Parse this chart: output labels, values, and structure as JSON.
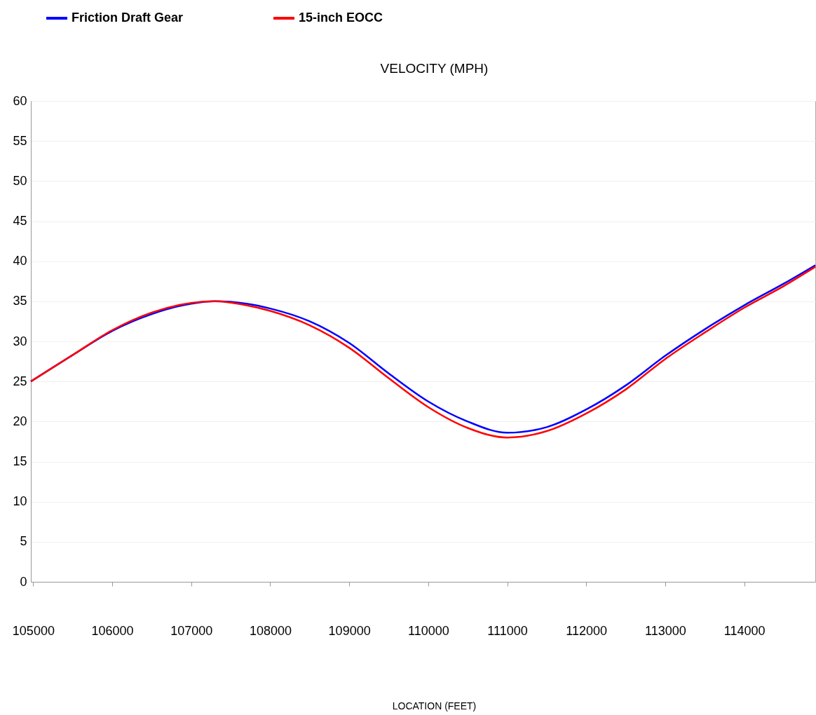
{
  "chart_data": {
    "type": "line",
    "title": "VELOCITY (MPH)",
    "annotations": [
      "LOCATION (FEET)"
    ],
    "line_style": "solid",
    "xlim": [
      104970,
      114900
    ],
    "xticks": [
      105000,
      106000,
      107000,
      108000,
      109000,
      110000,
      111000,
      112000,
      113000,
      114000
    ],
    "ylim": [
      0,
      60
    ],
    "yticks": [
      0,
      5,
      10,
      15,
      20,
      25,
      30,
      35,
      40,
      45,
      50,
      55,
      60
    ],
    "grid": "y",
    "legend": "top left",
    "series": [
      {
        "name": "Friction Draft Gear",
        "color": "#0000ff",
        "x": [
          104970,
          105500,
          106000,
          106500,
          107000,
          107300,
          107700,
          108000,
          108500,
          109000,
          109500,
          110000,
          110500,
          111000,
          111500,
          112000,
          112500,
          113000,
          113500,
          114000,
          114500,
          114900
        ],
        "values": [
          25,
          28.3,
          31.3,
          33.4,
          34.7,
          35.0,
          34.7,
          34.1,
          32.5,
          29.8,
          26.0,
          22.5,
          20.0,
          18.6,
          19.3,
          21.5,
          24.5,
          28.2,
          31.5,
          34.5,
          37.2,
          39.5
        ]
      },
      {
        "name": "15-inch EOCC",
        "color": "#ff0000",
        "x": [
          104970,
          105500,
          106000,
          106500,
          107000,
          107300,
          107700,
          108000,
          108500,
          109000,
          109500,
          110000,
          110500,
          111000,
          111500,
          112000,
          112500,
          113000,
          113500,
          114000,
          114500,
          114900
        ],
        "values": [
          25,
          28.3,
          31.4,
          33.6,
          34.8,
          35.0,
          34.5,
          33.8,
          32.0,
          29.2,
          25.4,
          21.8,
          19.2,
          18.0,
          18.8,
          21.0,
          24.0,
          27.8,
          31.1,
          34.2,
          36.9,
          39.3
        ]
      }
    ]
  }
}
